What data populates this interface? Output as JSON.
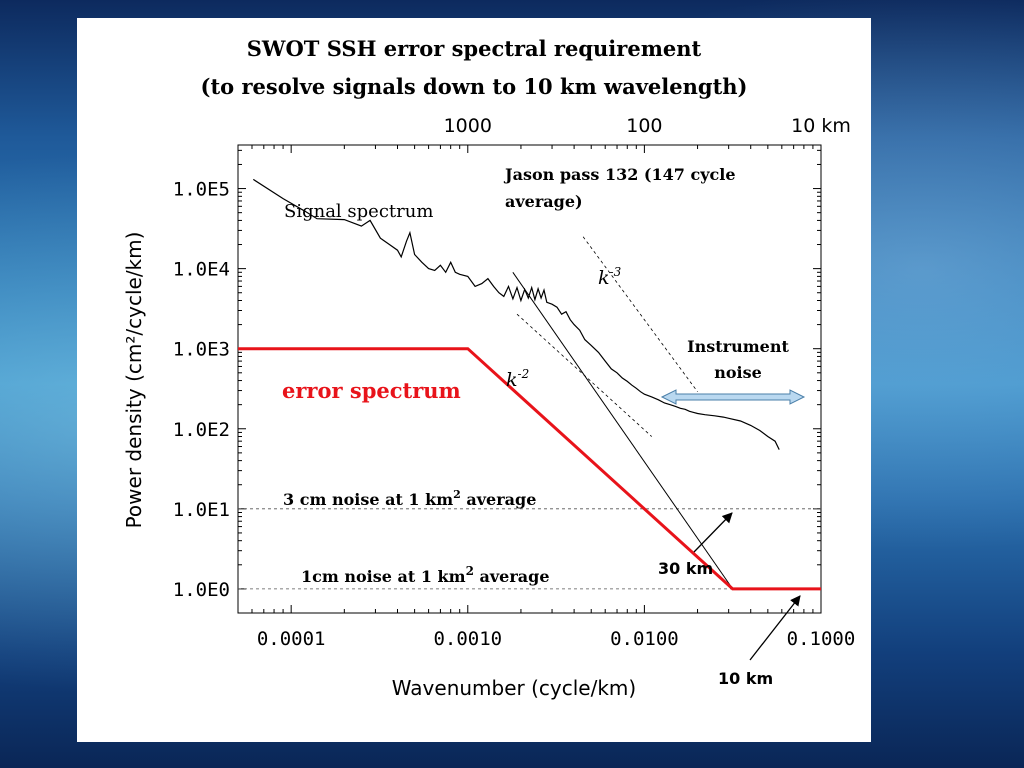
{
  "slide": {
    "title_line1": "SWOT SSH error spectral requirement",
    "title_line2": "(to resolve signals down to 10 km wavelength)"
  },
  "colors": {
    "error": "#e8131a",
    "signal": "#000000",
    "arrow_fill": "#b9d8f0"
  },
  "chart_data": {
    "type": "line",
    "xscale": "log",
    "yscale": "log",
    "xlim": [
      5e-05,
      0.1
    ],
    "ylim": [
      0.5,
      350000
    ],
    "xlabel": "Wavenumber (cycle/km)",
    "ylabel": "Power density (cm²/cycle/km)",
    "x_ticks": [
      {
        "v": 0.0001,
        "label": "0.0001"
      },
      {
        "v": 0.001,
        "label": "0.0010"
      },
      {
        "v": 0.01,
        "label": "0.0100"
      },
      {
        "v": 0.1,
        "label": "0.1000"
      }
    ],
    "y_ticks": [
      {
        "v": 1,
        "label": "1.0E0"
      },
      {
        "v": 10,
        "label": "1.0E1"
      },
      {
        "v": 100,
        "label": "1.0E2"
      },
      {
        "v": 1000,
        "label": "1.0E3"
      },
      {
        "v": 10000,
        "label": "1.0E4"
      },
      {
        "v": 100000,
        "label": "1.0E5"
      }
    ],
    "top_ticks": [
      {
        "v": 0.001,
        "label": "1000"
      },
      {
        "v": 0.01,
        "label": "100"
      },
      {
        "v": 0.1,
        "label": "10 km"
      }
    ],
    "series": [
      {
        "name": "Signal spectrum",
        "points": [
          [
            6.1e-05,
            130000
          ],
          [
            9e-05,
            75000
          ],
          [
            0.00012,
            52000
          ],
          [
            0.00014,
            42000
          ],
          [
            0.0002,
            41000
          ],
          [
            0.00025,
            34000
          ],
          [
            0.00028,
            40000
          ],
          [
            0.00032,
            24000
          ],
          [
            0.00036,
            20000
          ],
          [
            0.0004,
            17000
          ],
          [
            0.00042,
            14000
          ],
          [
            0.00045,
            22000
          ],
          [
            0.00047,
            28000
          ],
          [
            0.0005,
            15000
          ],
          [
            0.00055,
            12000
          ],
          [
            0.0006,
            10000
          ],
          [
            0.00065,
            9500
          ],
          [
            0.0007,
            11000
          ],
          [
            0.00075,
            9000
          ],
          [
            0.0008,
            12000
          ],
          [
            0.00085,
            9000
          ],
          [
            0.0009,
            8500
          ],
          [
            0.001,
            8000
          ],
          [
            0.0011,
            6000
          ],
          [
            0.0012,
            6500
          ],
          [
            0.0013,
            7500
          ],
          [
            0.0014,
            6000
          ],
          [
            0.0015,
            5000
          ],
          [
            0.0016,
            4500
          ],
          [
            0.0017,
            6000
          ],
          [
            0.0018,
            4200
          ],
          [
            0.0019,
            5800
          ],
          [
            0.002,
            4000
          ],
          [
            0.0021,
            5500
          ],
          [
            0.0022,
            4300
          ],
          [
            0.0023,
            5800
          ],
          [
            0.0024,
            4100
          ],
          [
            0.0025,
            5600
          ],
          [
            0.0026,
            4300
          ],
          [
            0.0027,
            5400
          ],
          [
            0.0028,
            3800
          ],
          [
            0.003,
            3600
          ],
          [
            0.0032,
            3300
          ],
          [
            0.0034,
            2700
          ],
          [
            0.0036,
            2900
          ],
          [
            0.0038,
            2300
          ],
          [
            0.004,
            2000
          ],
          [
            0.0043,
            1700
          ],
          [
            0.0046,
            1300
          ],
          [
            0.005,
            1100
          ],
          [
            0.0055,
            900
          ],
          [
            0.006,
            700
          ],
          [
            0.0065,
            560
          ],
          [
            0.007,
            500
          ],
          [
            0.0075,
            430
          ],
          [
            0.008,
            390
          ],
          [
            0.0085,
            350
          ],
          [
            0.009,
            320
          ],
          [
            0.0095,
            290
          ],
          [
            0.01,
            270
          ],
          [
            0.011,
            250
          ],
          [
            0.012,
            230
          ],
          [
            0.013,
            210
          ],
          [
            0.014,
            200
          ],
          [
            0.015,
            190
          ],
          [
            0.016,
            180
          ],
          [
            0.017,
            175
          ],
          [
            0.018,
            165
          ],
          [
            0.019,
            160
          ],
          [
            0.02,
            155
          ],
          [
            0.022,
            150
          ],
          [
            0.025,
            145
          ],
          [
            0.028,
            140
          ],
          [
            0.03,
            135
          ],
          [
            0.035,
            125
          ],
          [
            0.04,
            110
          ],
          [
            0.045,
            95
          ],
          [
            0.05,
            80
          ],
          [
            0.055,
            70
          ],
          [
            0.058,
            55
          ]
        ]
      },
      {
        "name": "error spectrum",
        "points": [
          [
            5e-05,
            1000
          ],
          [
            0.001,
            1000
          ],
          [
            0.0316,
            1
          ],
          [
            0.1,
            1
          ]
        ]
      }
    ],
    "reference_lines": [
      {
        "label": "3 cm noise at 1 km² average",
        "y": 10
      },
      {
        "label": "1cm noise at  1 km² average",
        "y": 1
      }
    ],
    "slopes": [
      {
        "label": "k-3",
        "exponent": -3,
        "line": [
          [
            0.0018,
            9000
          ],
          [
            0.0316,
            1
          ]
        ],
        "dashed_offset": [
          [
            0.0045,
            25000
          ],
          [
            0.02,
            290
          ]
        ]
      },
      {
        "label": "k-2",
        "exponent": -2,
        "line": [
          [
            0.0019,
            2700
          ],
          [
            0.011,
            80
          ]
        ]
      }
    ],
    "annotations": {
      "signal_label": "Signal spectrum",
      "error_label": "error spectrum",
      "jason_line1": "Jason pass 132 (147 cycle",
      "jason_line2": "average)",
      "k3_base": "k",
      "k3_exp": "-3",
      "k2_base": "k",
      "k2_exp": "-2",
      "instrument_line1": "Instrument",
      "instrument_line2": "noise",
      "km30": "30 km",
      "km10": "10 km",
      "noise3_prefix": "3 cm noise at 1 km",
      "noise3_sup": "2",
      "noise3_suffix": " average",
      "noise1_prefix": "1cm noise at  1 km",
      "noise1_sup": "2",
      "noise1_suffix": " average"
    }
  }
}
